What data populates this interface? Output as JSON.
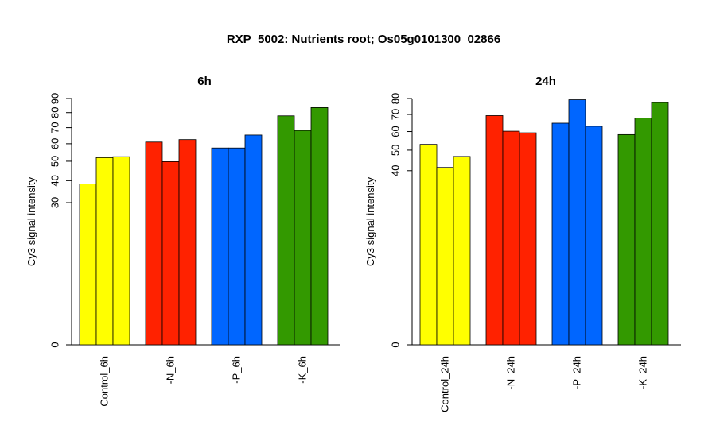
{
  "title": "RXP_5002: Nutrients root; Os05g0101300_02866",
  "chart_data": [
    {
      "type": "bar",
      "title": "6h",
      "ylabel": "Cy3 signal intensity",
      "xlabel": "",
      "y_axis_scale": "sqrt",
      "ylim": [
        0,
        90
      ],
      "yticks": [
        0,
        30,
        40,
        50,
        60,
        70,
        80,
        90
      ],
      "grid": false,
      "legend": "none",
      "categories": [
        "Control_6h",
        "-N_6h",
        "-P_6h",
        "-K_6h"
      ],
      "category_colors": [
        "#ffff00",
        "#ff2200",
        "#0066ff",
        "#339900"
      ],
      "replicates": [
        [
          38.4,
          52.0,
          52.5
        ],
        [
          61.0,
          49.8,
          62.5
        ],
        [
          57.5,
          57.5,
          65.3
        ],
        [
          77.8,
          68.2,
          83.5
        ]
      ]
    },
    {
      "type": "bar",
      "title": "24h",
      "ylabel": "Cy3 signal intensity",
      "xlabel": "",
      "y_axis_scale": "sqrt",
      "ylim": [
        0,
        80
      ],
      "yticks": [
        0,
        40,
        50,
        60,
        70,
        80
      ],
      "grid": false,
      "legend": "none",
      "categories": [
        "Control_24h",
        "-N_24h",
        "-P_24h",
        "-K_24h"
      ],
      "category_colors": [
        "#ffff00",
        "#ff2200",
        "#0066ff",
        "#339900"
      ],
      "replicates": [
        [
          53.0,
          41.5,
          46.8
        ],
        [
          69.3,
          60.2,
          59.3
        ],
        [
          64.8,
          79.2,
          63.0
        ],
        [
          58.3,
          67.9,
          77.4
        ]
      ]
    }
  ]
}
